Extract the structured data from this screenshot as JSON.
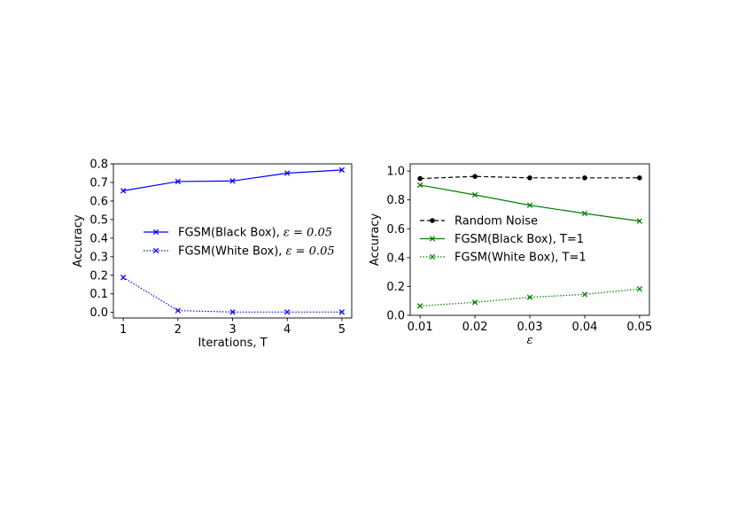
{
  "chart_data": [
    {
      "type": "line",
      "xlabel": "Iterations, T",
      "ylabel": "Accuracy",
      "x": [
        1,
        2,
        3,
        4,
        5
      ],
      "xticks": [
        "1",
        "2",
        "3",
        "4",
        "5"
      ],
      "yticks": [
        "0.0",
        "0.1",
        "0.2",
        "0.3",
        "0.4",
        "0.5",
        "0.6",
        "0.7",
        "0.8"
      ],
      "xlim": [
        0.82,
        5.18
      ],
      "ylim": [
        -0.03,
        0.8
      ],
      "grid": false,
      "legend_position": "center-right",
      "series": [
        {
          "name_text": "FGSM(Black Box), ",
          "name_math": "ε = 0.05",
          "color": "#0000ff",
          "linestyle": "solid",
          "marker": "x",
          "values": [
            0.655,
            0.705,
            0.708,
            0.75,
            0.767
          ]
        },
        {
          "name_text": "FGSM(White Box), ",
          "name_math": "ε = 0.05",
          "color": "#0000ff",
          "linestyle": "dotted",
          "marker": "x",
          "values": [
            0.188,
            0.01,
            0.002,
            0.002,
            0.002
          ]
        }
      ]
    },
    {
      "type": "line",
      "xlabel": "ε",
      "ylabel": "Accuracy",
      "x": [
        0.01,
        0.02,
        0.03,
        0.04,
        0.05
      ],
      "xticks": [
        "0.01",
        "0.02",
        "0.03",
        "0.04",
        "0.05"
      ],
      "yticks": [
        "0.0",
        "0.2",
        "0.4",
        "0.6",
        "0.8",
        "1.0"
      ],
      "xlim": [
        0.0082,
        0.0518
      ],
      "ylim": [
        0.0,
        1.05
      ],
      "grid": false,
      "legend_position": "center-left",
      "series": [
        {
          "name_text": "Random Noise",
          "name_math": "",
          "color": "#000000",
          "linestyle": "dashed",
          "marker": "o",
          "values": [
            0.948,
            0.963,
            0.953,
            0.953,
            0.953
          ]
        },
        {
          "name_text": "FGSM(Black Box), T=1",
          "name_math": "",
          "color": "#008000",
          "linestyle": "solid",
          "marker": "x",
          "values": [
            0.903,
            0.835,
            0.763,
            0.706,
            0.653
          ]
        },
        {
          "name_text": "FGSM(White Box), T=1",
          "name_math": "",
          "color": "#008000",
          "linestyle": "dotted",
          "marker": "x",
          "values": [
            0.065,
            0.09,
            0.125,
            0.145,
            0.183
          ]
        }
      ]
    }
  ]
}
